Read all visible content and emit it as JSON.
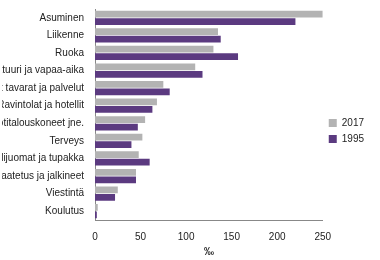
{
  "chart_data": {
    "type": "bar",
    "orientation": "horizontal",
    "categories": [
      "Asuminen",
      "Liikenne",
      "Ruoka",
      "Kulttuuri ja vapaa-aika",
      "Muut tavarat ja palvelut",
      "Ravintolat ja hotellit",
      "Kalusteet, kotitalouskoneet jne.",
      "Terveys",
      "Alkoholijuomat ja tupakka",
      "Vaatetus ja jalkineet",
      "Viestintä",
      "Koulutus"
    ],
    "series": [
      {
        "name": "2017",
        "color": "#b3b3b3",
        "values": [
          250,
          135,
          130,
          110,
          75,
          68,
          55,
          52,
          48,
          45,
          25,
          3
        ]
      },
      {
        "name": "1995",
        "color": "#5b3a80",
        "values": [
          220,
          138,
          157,
          118,
          82,
          63,
          47,
          40,
          60,
          45,
          22,
          2
        ]
      }
    ],
    "xlabel": "‰",
    "xlim": [
      0,
      250
    ],
    "xticks": [
      0,
      50,
      100,
      150,
      200,
      250
    ],
    "grid": false,
    "legend": "right"
  }
}
